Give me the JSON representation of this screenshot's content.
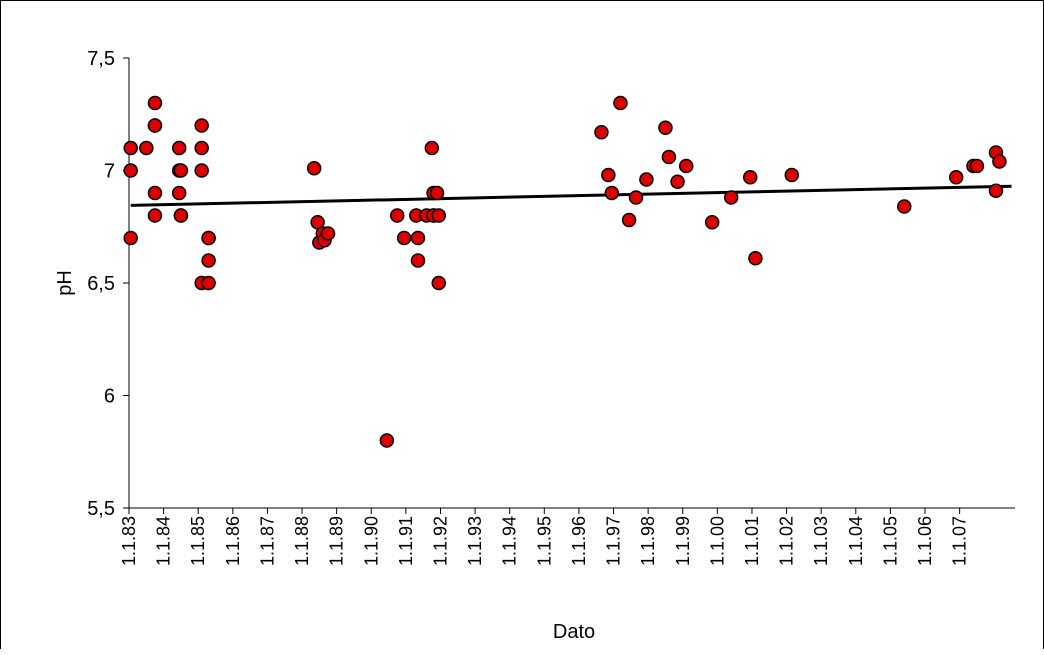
{
  "chart_data": {
    "type": "scatter",
    "title": "",
    "xlabel": "Dato",
    "ylabel": "pH",
    "ylim": [
      5.5,
      7.5
    ],
    "yticks": [
      5.5,
      6,
      6.5,
      7,
      7.5
    ],
    "ytick_labels": [
      "5,5",
      "6",
      "6,5",
      "7",
      "7,5"
    ],
    "x_axis": "date (day.month.year offset index)",
    "xlim": [
      0,
      25.6
    ],
    "xtick_labels": [
      "1.1.83",
      "1.1.84",
      "1.1.85",
      "1.1.86",
      "1.1.87",
      "1.1.88",
      "1.1.89",
      "1.1.90",
      "1.1.91",
      "1.1.92",
      "1.1.93",
      "1.1.94",
      "1.1.95",
      "1.1.96",
      "1.1.97",
      "1.1.98",
      "1.1.99",
      "1.1.00",
      "1.1.01",
      "1.1.02",
      "1.1.03",
      "1.1.04",
      "1.1.05",
      "1.1.06",
      "1.1.07"
    ],
    "grid": false,
    "legend": "none",
    "marker_color": "#dd0000",
    "marker_edge": "#000000",
    "trendline_color": "#000000",
    "trendline": {
      "x": [
        0.05,
        25.5
      ],
      "y": [
        6.845,
        6.93
      ]
    },
    "series": [
      {
        "x": [
          0.05,
          0.05,
          0.05,
          0.5,
          0.75,
          0.75,
          0.75,
          0.75,
          0.75,
          1.45,
          1.45,
          1.45,
          1.5,
          1.5,
          1.5,
          2.1,
          2.1,
          2.1,
          2.1,
          2.3,
          2.3,
          2.3,
          2.3,
          5.35,
          5.45,
          5.5,
          5.6,
          5.65,
          5.75,
          7.45,
          7.75,
          7.95,
          8.3,
          8.35,
          8.35,
          8.6,
          8.75,
          8.8,
          8.8,
          8.8,
          8.9,
          8.95,
          8.95,
          13.65,
          13.85,
          13.95,
          14.2,
          14.45,
          14.65,
          14.95,
          15.5,
          15.6,
          15.85,
          16.1,
          16.85,
          17.4,
          17.95,
          18.1,
          19.15,
          22.4,
          23.9,
          24.4,
          24.5,
          25.05,
          25.05,
          25.15
        ],
        "y": [
          7.1,
          7.0,
          6.7,
          7.1,
          7.3,
          7.2,
          6.9,
          6.8,
          7.2,
          7.1,
          7.0,
          6.9,
          6.8,
          7.0,
          6.8,
          7.2,
          7.1,
          7.0,
          6.5,
          6.6,
          6.7,
          6.5,
          6.7,
          7.01,
          6.77,
          6.68,
          6.72,
          6.69,
          6.72,
          5.8,
          6.8,
          6.7,
          6.8,
          6.7,
          6.6,
          6.8,
          7.1,
          6.9,
          6.8,
          6.8,
          6.9,
          6.8,
          6.5,
          7.17,
          6.98,
          6.9,
          7.3,
          6.78,
          6.88,
          6.96,
          7.19,
          7.06,
          6.95,
          7.02,
          6.77,
          6.88,
          6.97,
          6.61,
          6.98,
          6.84,
          6.97,
          7.02,
          7.02,
          7.08,
          6.91,
          7.04
        ]
      }
    ]
  }
}
